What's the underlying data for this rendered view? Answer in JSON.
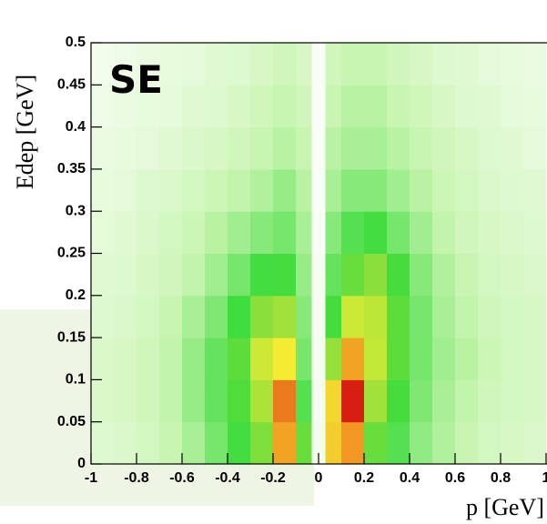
{
  "chart_data": {
    "type": "histogram2d",
    "annotation": "SE",
    "xlabel": "p [GeV]",
    "ylabel": "Edep [GeV]",
    "xlim": [
      -1,
      1
    ],
    "ylim": [
      0,
      0.5
    ],
    "xticks": [
      -1,
      -0.8,
      -0.6,
      -0.4,
      -0.2,
      0,
      0.2,
      0.4,
      0.6,
      0.8,
      1
    ],
    "yticks": [
      0,
      0.05,
      0.1,
      0.15,
      0.2,
      0.25,
      0.3,
      0.35,
      0.4,
      0.45,
      0.5
    ],
    "xbins": [
      -1,
      -0.9,
      -0.8,
      -0.7,
      -0.6,
      -0.5,
      -0.4,
      -0.3,
      -0.2,
      -0.1,
      -0.03,
      0.03,
      0.1,
      0.2,
      0.3,
      0.4,
      0.5,
      0.6,
      0.7,
      0.8,
      0.9,
      1
    ],
    "ybins": [
      0,
      0.05,
      0.1,
      0.15,
      0.2,
      0.25,
      0.3,
      0.35,
      0.4,
      0.45,
      0.5
    ],
    "colors": [
      "#ffffff",
      "#c8f5b0",
      "#3ddc3d",
      "#9be03a",
      "#f4f034",
      "#f29a22",
      "#d81e12"
    ],
    "z": [
      [
        10,
        11,
        13,
        16,
        20,
        26,
        32,
        44,
        80,
        40,
        4,
        72,
        82,
        40,
        30,
        23,
        19,
        16,
        13,
        12,
        11
      ],
      [
        11,
        12,
        14,
        17,
        22,
        28,
        36,
        52,
        86,
        30,
        3,
        70,
        98,
        50,
        34,
        25,
        20,
        17,
        14,
        13,
        12
      ],
      [
        11,
        12,
        14,
        17,
        22,
        28,
        38,
        58,
        66,
        26,
        3,
        48,
        80,
        56,
        38,
        26,
        21,
        18,
        15,
        13,
        12
      ],
      [
        10,
        11,
        13,
        16,
        20,
        25,
        33,
        46,
        50,
        24,
        3,
        34,
        58,
        55,
        38,
        26,
        20,
        17,
        14,
        13,
        12
      ],
      [
        9,
        10,
        12,
        14,
        17,
        21,
        26,
        32,
        34,
        22,
        3,
        28,
        40,
        46,
        34,
        24,
        19,
        16,
        13,
        12,
        11
      ],
      [
        8,
        9,
        11,
        13,
        15,
        18,
        21,
        24,
        26,
        20,
        2,
        24,
        30,
        32,
        26,
        21,
        17,
        14,
        12,
        11,
        10
      ],
      [
        7,
        8,
        10,
        11,
        13,
        15,
        17,
        19,
        22,
        18,
        2,
        20,
        24,
        24,
        21,
        18,
        15,
        13,
        11,
        10,
        9
      ],
      [
        6,
        7,
        8,
        9,
        11,
        12,
        14,
        16,
        18,
        16,
        2,
        18,
        20,
        20,
        18,
        16,
        14,
        12,
        10,
        9,
        8
      ],
      [
        5,
        6,
        7,
        8,
        9,
        10,
        12,
        14,
        16,
        14,
        2,
        16,
        18,
        18,
        16,
        14,
        12,
        10,
        9,
        8,
        7
      ],
      [
        4,
        5,
        6,
        7,
        8,
        9,
        10,
        12,
        14,
        12,
        2,
        14,
        16,
        16,
        14,
        12,
        10,
        9,
        8,
        7,
        6
      ]
    ]
  }
}
